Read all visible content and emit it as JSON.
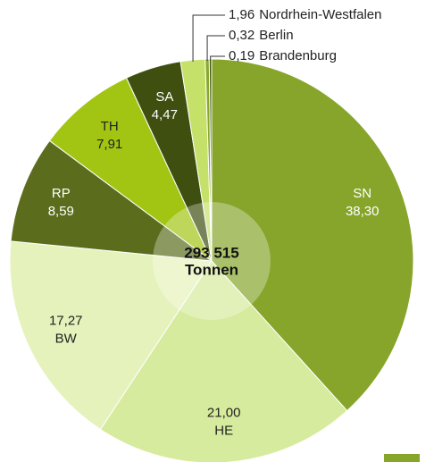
{
  "chart_data": {
    "type": "pie",
    "center_text": [
      "293 515",
      "Tonnen"
    ],
    "categories": [
      "SN",
      "HE",
      "BW",
      "RP",
      "TH",
      "SA",
      "Nordrhein-Westfalen",
      "Berlin",
      "Brandenburg"
    ],
    "values": [
      38.3,
      21.0,
      17.27,
      8.59,
      7.91,
      4.47,
      1.96,
      0.32,
      0.19
    ],
    "value_labels": [
      "38,30",
      "21,00",
      "17,27",
      "8,59",
      "7,91",
      "4,47",
      "1,96",
      "0,32",
      "0,19"
    ],
    "colors": [
      "#86a52a",
      "#d6eb9d",
      "#e5f2bb",
      "#5b6d1d",
      "#a2c514",
      "#3e4f10",
      "#c6e16a",
      "#8aa82a",
      "#4a5a18"
    ]
  }
}
